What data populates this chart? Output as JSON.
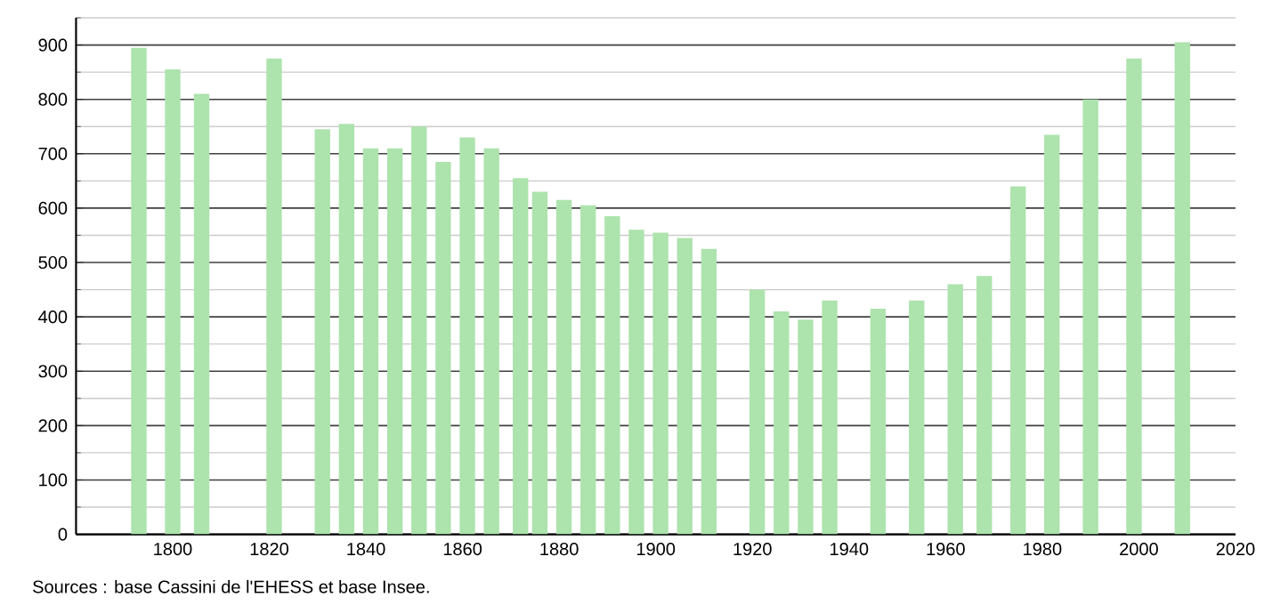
{
  "chart_data": {
    "type": "bar",
    "x": [
      1793,
      1800,
      1806,
      1821,
      1831,
      1836,
      1841,
      1846,
      1851,
      1856,
      1861,
      1866,
      1872,
      1876,
      1881,
      1886,
      1891,
      1896,
      1901,
      1906,
      1911,
      1921,
      1926,
      1931,
      1936,
      1946,
      1954,
      1962,
      1968,
      1975,
      1982,
      1990,
      1999,
      2009
    ],
    "values": [
      895,
      855,
      810,
      875,
      745,
      755,
      710,
      710,
      750,
      685,
      730,
      710,
      655,
      630,
      615,
      605,
      585,
      560,
      555,
      545,
      525,
      450,
      410,
      395,
      430,
      415,
      430,
      460,
      475,
      640,
      735,
      800,
      875,
      905
    ],
    "color": "#ade3ad",
    "xlim": [
      1780,
      2020
    ],
    "xticks": [
      1800,
      1820,
      1840,
      1860,
      1880,
      1900,
      1920,
      1940,
      1960,
      1980,
      2000,
      2020
    ],
    "ylim": [
      0,
      950
    ],
    "yticks": [
      0,
      {
        "value": 50,
        "label": null
      },
      100,
      {
        "value": 150,
        "label": null
      },
      200,
      {
        "value": 250,
        "label": null
      },
      300,
      {
        "value": 350,
        "label": null
      },
      400,
      {
        "value": 450,
        "label": null
      },
      500,
      {
        "value": 550,
        "label": null
      },
      600,
      {
        "value": 650,
        "label": null
      },
      700,
      {
        "value": 750,
        "label": null
      },
      800,
      {
        "value": 850,
        "label": null
      },
      900,
      {
        "value": 950,
        "label": null
      }
    ],
    "grid": "y",
    "annotations": [
      "Sources : base Cassini de l'EHESS et base Insee."
    ]
  }
}
